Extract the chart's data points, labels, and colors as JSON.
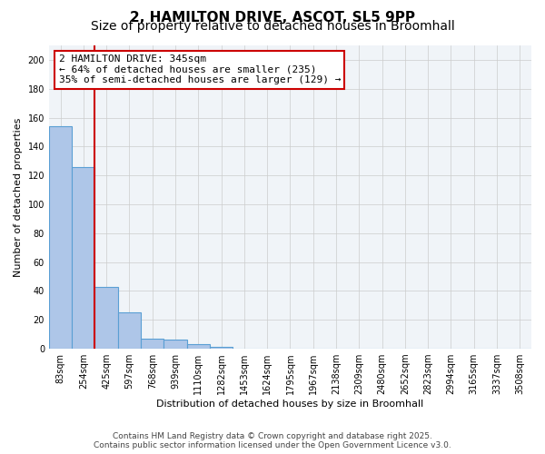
{
  "title_line1": "2, HAMILTON DRIVE, ASCOT, SL5 9PP",
  "title_line2": "Size of property relative to detached houses in Broomhall",
  "xlabel": "Distribution of detached houses by size in Broomhall",
  "ylabel": "Number of detached properties",
  "bin_labels": [
    "83sqm",
    "254sqm",
    "425sqm",
    "597sqm",
    "768sqm",
    "939sqm",
    "1110sqm",
    "1282sqm",
    "1453sqm",
    "1624sqm",
    "1795sqm",
    "1967sqm",
    "2138sqm",
    "2309sqm",
    "2480sqm",
    "2652sqm",
    "2823sqm",
    "2994sqm",
    "3165sqm",
    "3337sqm",
    "3508sqm"
  ],
  "bar_heights": [
    154,
    126,
    43,
    25,
    7,
    6,
    3,
    1,
    0,
    0,
    0,
    0,
    0,
    0,
    0,
    0,
    0,
    0,
    0,
    0,
    0
  ],
  "bar_color": "#aec6e8",
  "bar_edge_color": "#5a9fd4",
  "annotation_text": "2 HAMILTON DRIVE: 345sqm\n← 64% of detached houses are smaller (235)\n35% of semi-detached houses are larger (129) →",
  "annotation_box_color": "#ffffff",
  "annotation_box_edge_color": "#cc0000",
  "vline_color": "#cc0000",
  "vline_x": 1.5,
  "ylim": [
    0,
    210
  ],
  "yticks": [
    0,
    20,
    40,
    60,
    80,
    100,
    120,
    140,
    160,
    180,
    200
  ],
  "grid_color": "#cccccc",
  "background_color": "#f0f4f8",
  "footnote": "Contains HM Land Registry data © Crown copyright and database right 2025.\nContains public sector information licensed under the Open Government Licence v3.0.",
  "title_fontsize": 11,
  "subtitle_fontsize": 10,
  "axis_label_fontsize": 8,
  "tick_fontsize": 7,
  "annotation_fontsize": 8
}
